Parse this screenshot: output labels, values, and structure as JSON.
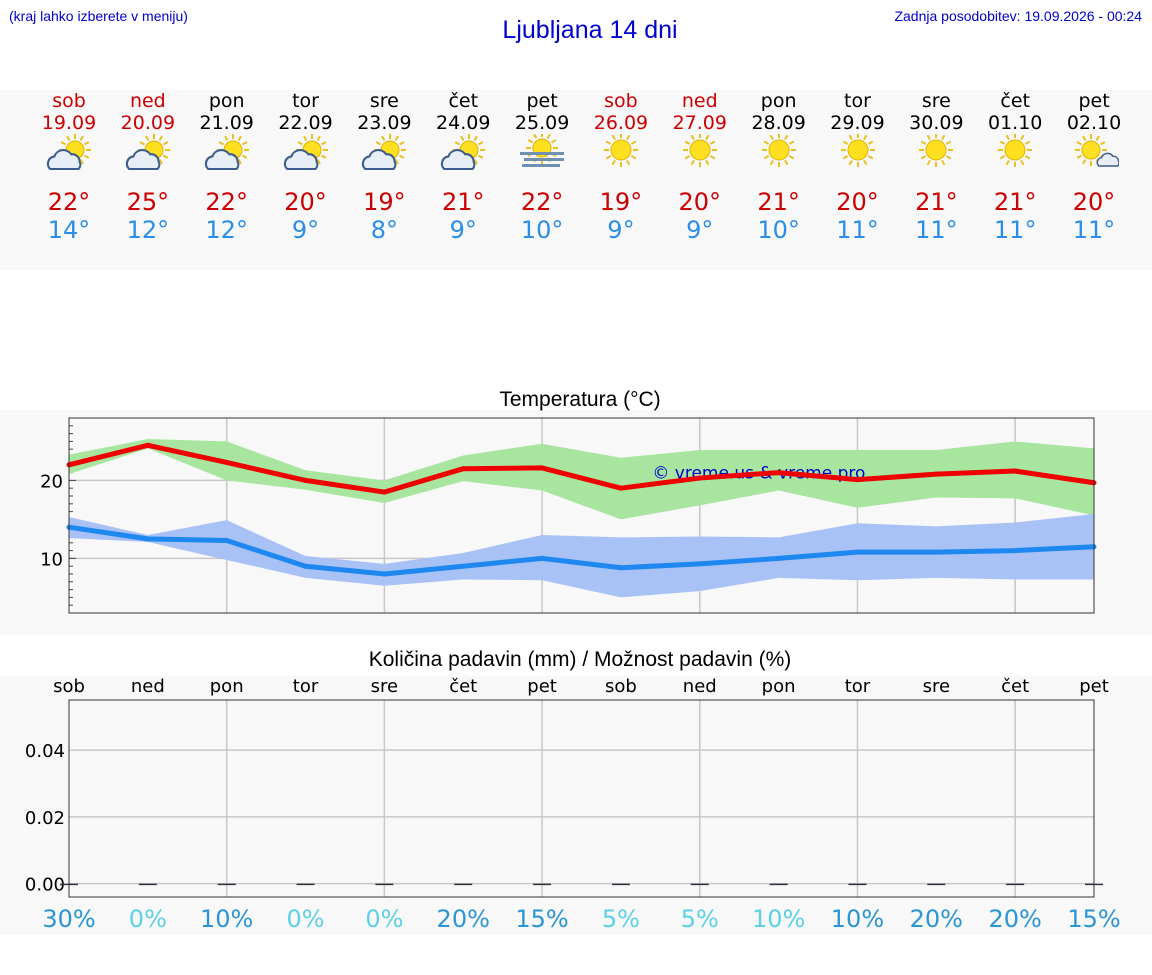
{
  "header": {
    "note": "(kraj lahko izberete v meniju)",
    "title": "Ljubljana 14 dni",
    "updated": "Zadnja posodobitev: 19.09.2026 - 00:24"
  },
  "days": [
    {
      "name": "sob",
      "date": "19.09",
      "weekend": true,
      "icon": "sun-cloud-icon",
      "tmax": "22°",
      "tmin": "14°"
    },
    {
      "name": "ned",
      "date": "20.09",
      "weekend": true,
      "icon": "sun-cloud-icon",
      "tmax": "25°",
      "tmin": "12°"
    },
    {
      "name": "pon",
      "date": "21.09",
      "weekend": false,
      "icon": "sun-cloud-icon",
      "tmax": "22°",
      "tmin": "12°"
    },
    {
      "name": "tor",
      "date": "22.09",
      "weekend": false,
      "icon": "sun-cloud-icon",
      "tmax": "20°",
      "tmin": "9°"
    },
    {
      "name": "sre",
      "date": "23.09",
      "weekend": false,
      "icon": "sun-cloud-icon",
      "tmax": "19°",
      "tmin": "8°"
    },
    {
      "name": "čet",
      "date": "24.09",
      "weekend": false,
      "icon": "sun-cloud-icon",
      "tmax": "21°",
      "tmin": "9°"
    },
    {
      "name": "pet",
      "date": "25.09",
      "weekend": false,
      "icon": "sun-fog-icon",
      "tmax": "22°",
      "tmin": "10°"
    },
    {
      "name": "sob",
      "date": "26.09",
      "weekend": true,
      "icon": "sun-icon",
      "tmax": "19°",
      "tmin": "9°"
    },
    {
      "name": "ned",
      "date": "27.09",
      "weekend": true,
      "icon": "sun-icon",
      "tmax": "20°",
      "tmin": "9°"
    },
    {
      "name": "pon",
      "date": "28.09",
      "weekend": false,
      "icon": "sun-icon",
      "tmax": "21°",
      "tmin": "10°"
    },
    {
      "name": "tor",
      "date": "29.09",
      "weekend": false,
      "icon": "sun-icon",
      "tmax": "20°",
      "tmin": "11°"
    },
    {
      "name": "sre",
      "date": "30.09",
      "weekend": false,
      "icon": "sun-icon",
      "tmax": "21°",
      "tmin": "11°"
    },
    {
      "name": "čet",
      "date": "01.10",
      "weekend": false,
      "icon": "sun-icon",
      "tmax": "21°",
      "tmin": "11°"
    },
    {
      "name": "pet",
      "date": "02.10",
      "weekend": false,
      "icon": "sun-small-cloud-icon",
      "tmax": "20°",
      "tmin": "11°"
    }
  ],
  "colors": {
    "weekend": "#cc0000",
    "max_line": "#ee0000",
    "max_band": "#a8e6a0",
    "min_line": "#1e88f0",
    "min_band": "#a9c2f5",
    "header_text": "#0000cc"
  },
  "chart_data": [
    {
      "type": "line",
      "title": "Temperatura (°C)",
      "watermark": "© vreme.us & vreme.pro",
      "x": [
        "sob",
        "ned",
        "pon",
        "tor",
        "sre",
        "čet",
        "pet",
        "sob",
        "ned",
        "pon",
        "tor",
        "sre",
        "čet",
        "pet"
      ],
      "ylim": [
        3,
        28
      ],
      "yticks": [
        10,
        20
      ],
      "grid": true,
      "series": [
        {
          "values": [
            22,
            24.5,
            22.3,
            20,
            18.5,
            21.5,
            21.6,
            19,
            20.3,
            21,
            20.1,
            20.8,
            21.2,
            19.7
          ],
          "band_low": [
            20.8,
            24.1,
            20,
            18.8,
            17.1,
            19.9,
            18.7,
            15,
            16.8,
            18.7,
            16.5,
            17.8,
            17.7,
            15.5
          ],
          "band_high": [
            23.3,
            25.3,
            25,
            21.3,
            20,
            23.2,
            24.7,
            22.9,
            23.9,
            23.9,
            23.9,
            23.9,
            25,
            24.1
          ]
        },
        {
          "values": [
            14,
            12.5,
            12.3,
            9,
            8,
            9,
            10,
            8.8,
            9.3,
            10,
            10.8,
            10.8,
            11,
            11.5
          ],
          "band_low": [
            12.6,
            12.1,
            9.8,
            7.5,
            6.5,
            7.3,
            7.2,
            5,
            5.8,
            7.5,
            7.2,
            7.5,
            7.3,
            7.3
          ],
          "band_high": [
            15.3,
            13,
            14.9,
            10.3,
            9.3,
            10.7,
            13,
            12.7,
            12.8,
            12.7,
            14.5,
            14.1,
            14.6,
            15.7
          ]
        }
      ]
    },
    {
      "type": "bar",
      "title": "Količina padavin (mm) / Možnost padavin (%)",
      "categories": [
        "sob",
        "ned",
        "pon",
        "tor",
        "sre",
        "čet",
        "pet",
        "sob",
        "ned",
        "pon",
        "tor",
        "sre",
        "čet",
        "pet"
      ],
      "values": [
        0,
        0,
        0,
        0,
        0,
        0,
        0,
        0,
        0,
        0,
        0,
        0,
        0,
        0
      ],
      "ylim": [
        -0.004,
        0.055
      ],
      "yticks": [
        "0.00",
        "0.02",
        "0.04"
      ],
      "ytick_values": [
        0,
        0.02,
        0.04
      ],
      "probability": [
        "30%",
        "0%",
        "10%",
        "0%",
        "0%",
        "20%",
        "15%",
        "5%",
        "5%",
        "10%",
        "10%",
        "20%",
        "20%",
        "15%"
      ],
      "probability_colors": [
        "#2a95d5",
        "#5cd0e6",
        "#2a95d5",
        "#5cd0e6",
        "#5cd0e6",
        "#2a95d5",
        "#2a95d5",
        "#5cd0e6",
        "#5cd0e6",
        "#5cd0e6",
        "#2a95d5",
        "#2a95d5",
        "#2a95d5",
        "#2a95d5"
      ]
    }
  ]
}
